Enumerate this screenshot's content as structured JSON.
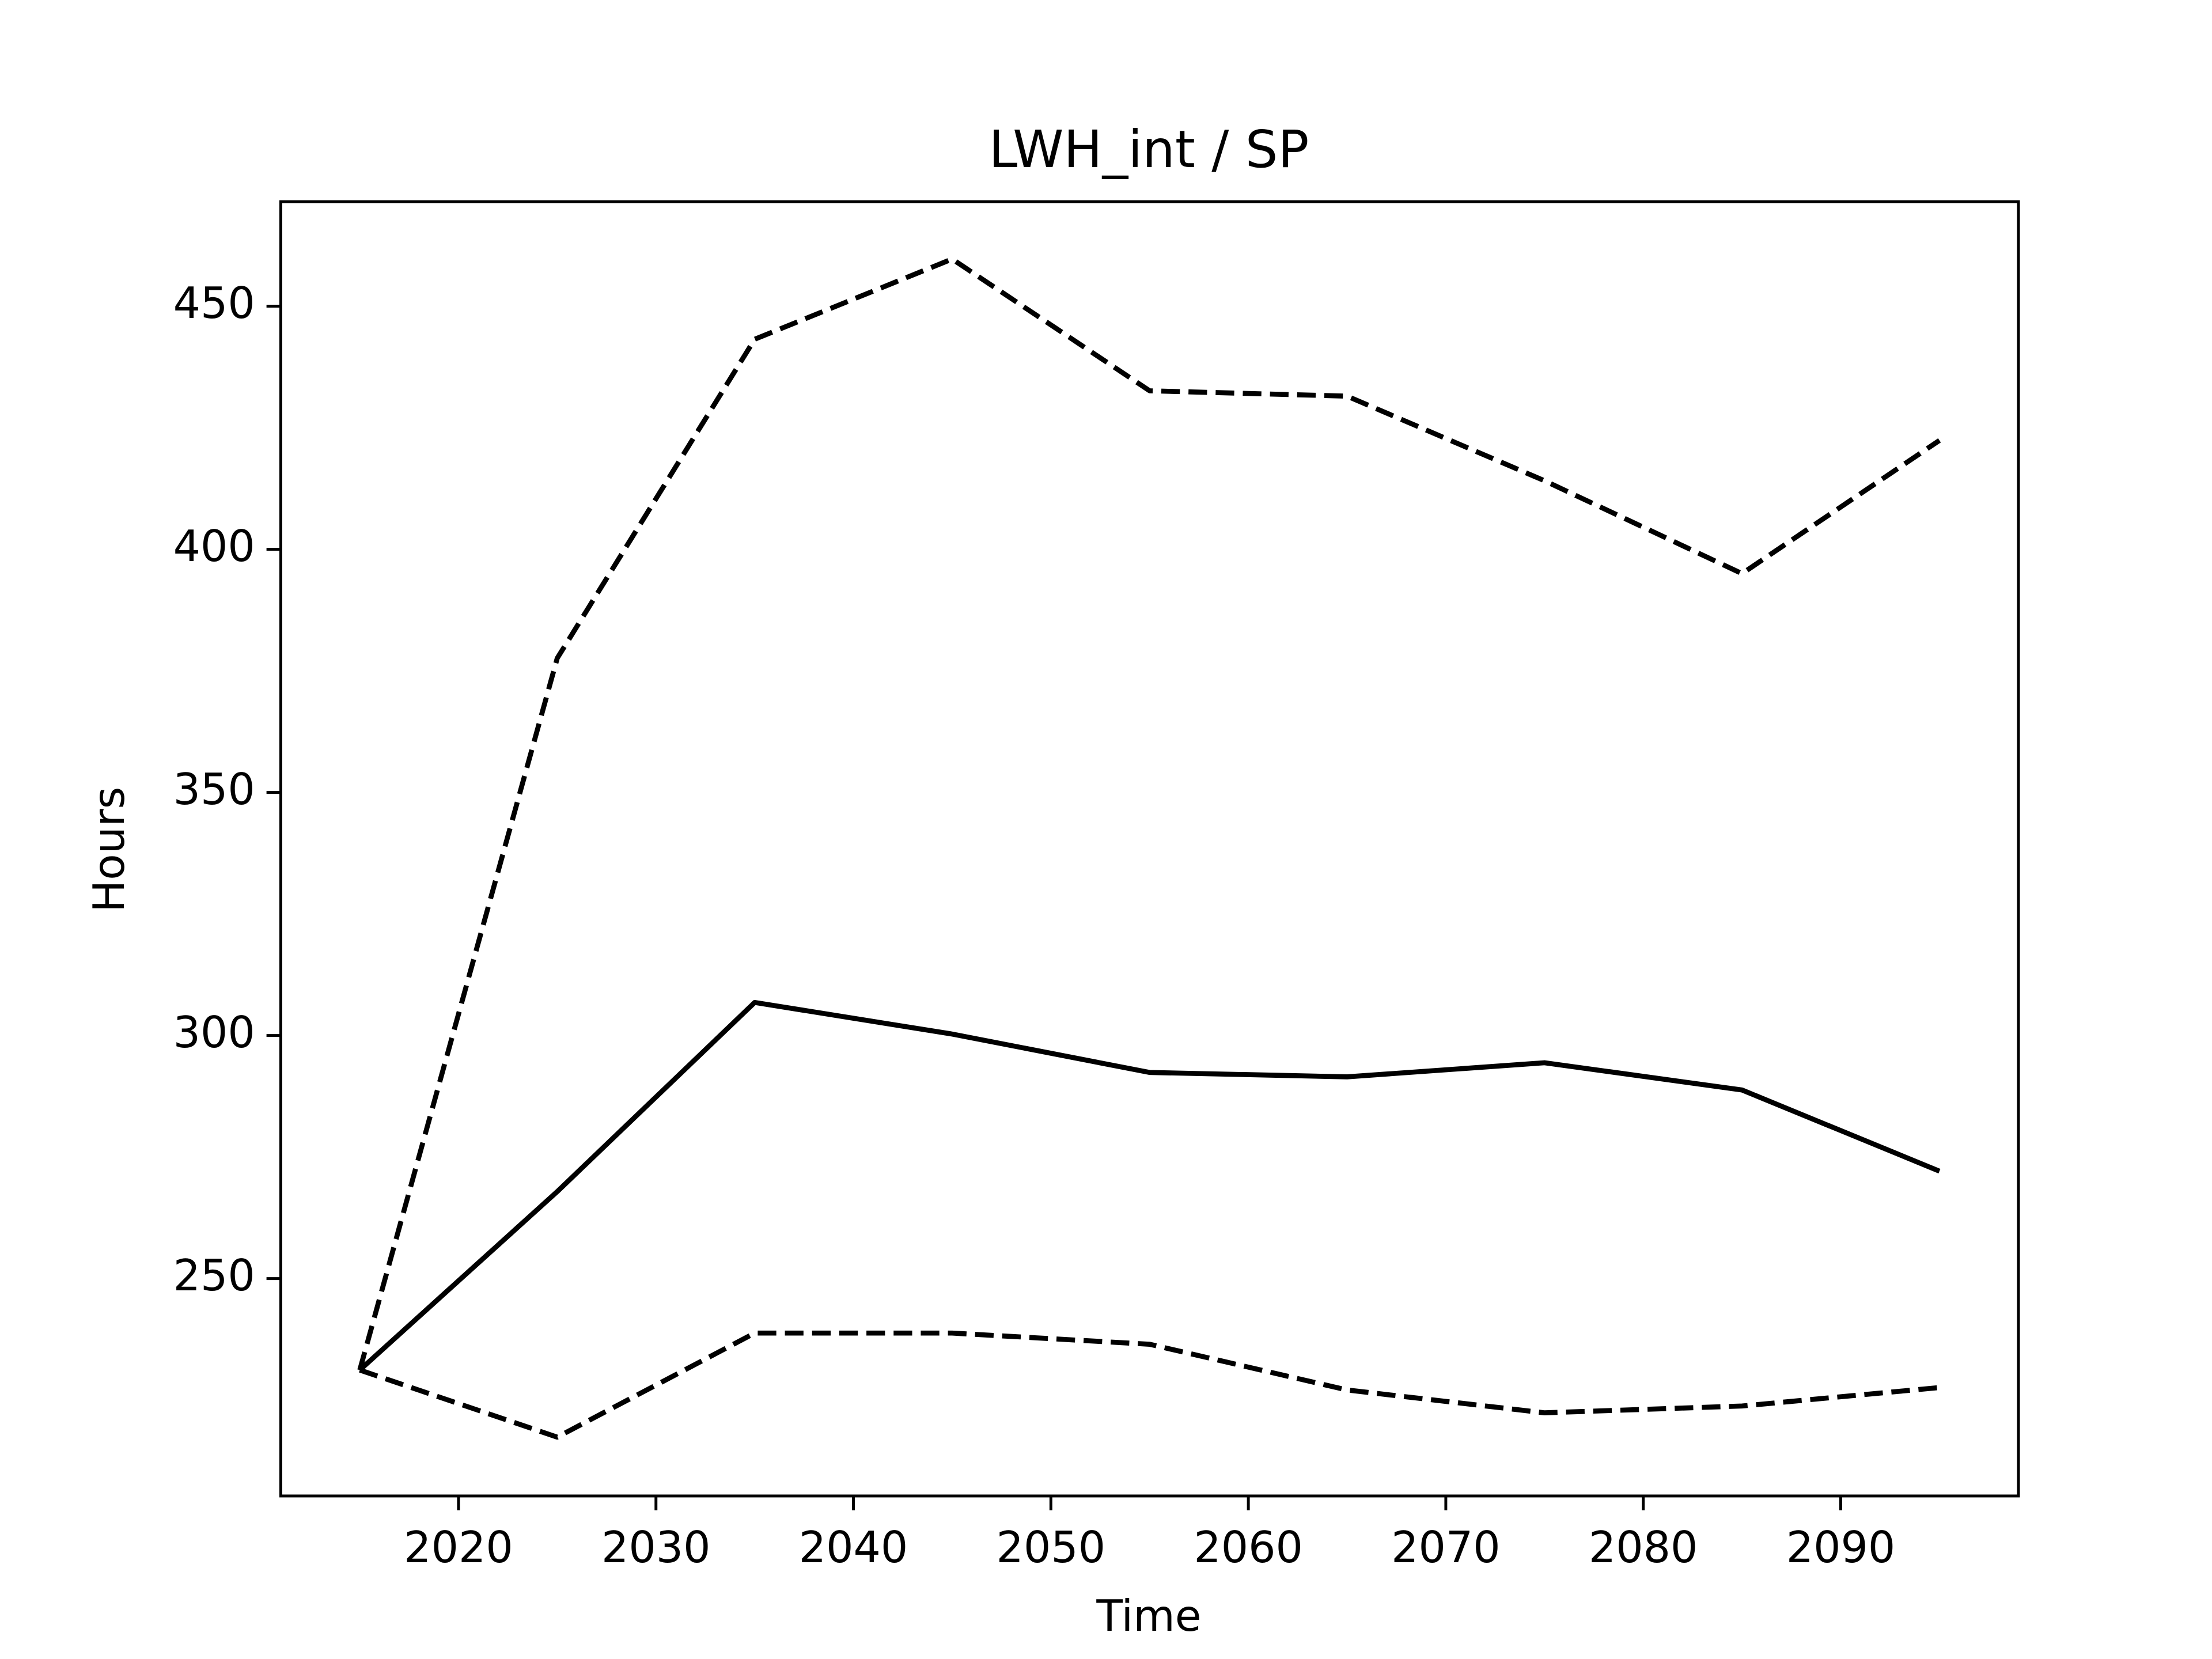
{
  "chart_data": {
    "type": "line",
    "title": "LWH_int / SP",
    "x_label": "Time",
    "y_label": "Hours",
    "x": [
      2015,
      2025,
      2035,
      2045,
      2055,
      2065,
      2075,
      2085,
      2095
    ],
    "series": [
      {
        "color": "#000000",
        "linestyle": "solid",
        "values": [
          231.2,
          267.9,
          306.8,
          300.3,
          292.4,
          291.5,
          294.4,
          288.8,
          272.1
        ]
      },
      {
        "color": "#000000",
        "linestyle": "dashed",
        "values": [
          231.2,
          377.6,
          443.2,
          459.7,
          432.6,
          431.5,
          414.1,
          395.0,
          422.4
        ]
      },
      {
        "color": "#000000",
        "linestyle": "dashed",
        "values": [
          231.2,
          217.4,
          238.8,
          238.8,
          236.5,
          227.1,
          222.4,
          223.8,
          227.6
        ]
      }
    ],
    "xlim": [
      2011,
      2099
    ],
    "ylim": [
      205.3,
      471.5
    ],
    "xticks": [
      2020,
      2030,
      2040,
      2050,
      2060,
      2070,
      2080,
      2090
    ],
    "yticks": [
      250,
      300,
      350,
      400,
      450
    ],
    "grid": false
  }
}
